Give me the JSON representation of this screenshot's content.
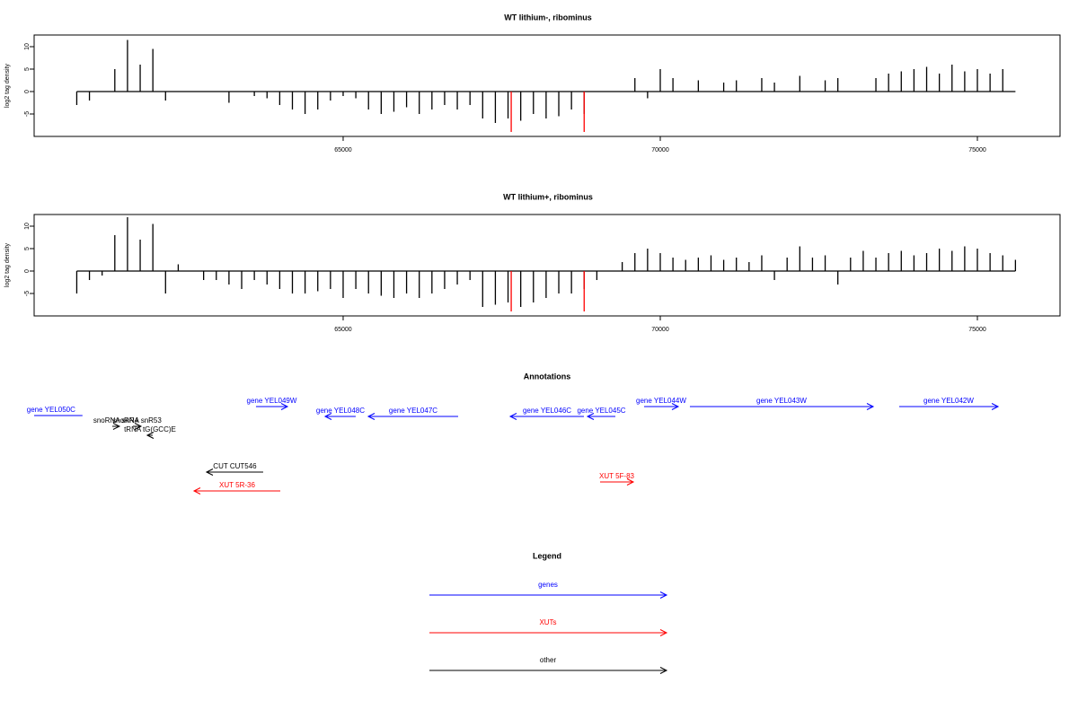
{
  "chart_data": [
    {
      "type": "bar",
      "title": "WT lithium-, ribominus",
      "y_label": "log2 tag density",
      "xlim": [
        60128,
        76303
      ],
      "xticks": [
        65000,
        70000,
        75000
      ],
      "ylim": [
        -10,
        12.6
      ],
      "yticks": [
        -5,
        0,
        5,
        10
      ],
      "series": [
        {
          "color": "#000000",
          "x": [
            60800,
            61000,
            61200,
            61400,
            61600,
            61800,
            62000,
            62200,
            62400,
            62600,
            62800,
            63000,
            63200,
            63400,
            63600,
            63800,
            64000,
            64200,
            64400,
            64600,
            64800,
            65000,
            65200,
            65400,
            65600,
            65800,
            66000,
            66200,
            66400,
            66600,
            66800,
            67000,
            67200,
            67400,
            67600,
            67800,
            68000,
            68200,
            68400,
            68600,
            68800,
            69000,
            69200,
            69400,
            69600,
            69800,
            70000,
            70200,
            70400,
            70600,
            70800,
            71000,
            71200,
            71400,
            71600,
            71800,
            72000,
            72200,
            72400,
            72600,
            72800,
            73000,
            73200,
            73400,
            73600,
            73800,
            74000,
            74200,
            74400,
            74600,
            74800,
            75000,
            75200,
            75400,
            75600
          ],
          "values": [
            -3,
            -2,
            0,
            5,
            11.5,
            6,
            9.5,
            -2,
            0,
            0,
            0,
            0,
            -2.5,
            0,
            -1,
            -1.5,
            -3,
            -4,
            -5,
            -4,
            -2,
            -1,
            -1.5,
            -4,
            -5,
            -4.5,
            -3.5,
            -5,
            -4,
            -3,
            -4,
            -3,
            -6,
            -7,
            -6,
            -6.5,
            -5,
            -6,
            -5.5,
            -4,
            -5,
            0,
            0,
            0,
            3,
            -1.5,
            5,
            3,
            0,
            2.5,
            0,
            2,
            2.5,
            0,
            3,
            2,
            0,
            3.5,
            0,
            2.5,
            3,
            0,
            0,
            3,
            4,
            4.5,
            5,
            5.5,
            4,
            6,
            4.5,
            5,
            4,
            5,
            0
          ]
        },
        {
          "color": "#ff0000",
          "x": [
            67650,
            68800
          ],
          "values": [
            -9,
            -9
          ]
        }
      ]
    },
    {
      "type": "bar",
      "title": "WT lithium+, ribominus",
      "y_label": "log2 tag density",
      "xlim": [
        60128,
        76303
      ],
      "xticks": [
        65000,
        70000,
        75000
      ],
      "ylim": [
        -10,
        12.6
      ],
      "yticks": [
        -5,
        0,
        5,
        10
      ],
      "series": [
        {
          "color": "#000000",
          "x": [
            60800,
            61000,
            61200,
            61400,
            61600,
            61800,
            62000,
            62200,
            62400,
            62600,
            62800,
            63000,
            63200,
            63400,
            63600,
            63800,
            64000,
            64200,
            64400,
            64600,
            64800,
            65000,
            65200,
            65400,
            65600,
            65800,
            66000,
            66200,
            66400,
            66600,
            66800,
            67000,
            67200,
            67400,
            67600,
            67800,
            68000,
            68200,
            68400,
            68600,
            68800,
            69000,
            69200,
            69400,
            69600,
            69800,
            70000,
            70200,
            70400,
            70600,
            70800,
            71000,
            71200,
            71400,
            71600,
            71800,
            72000,
            72200,
            72400,
            72600,
            72800,
            73000,
            73200,
            73400,
            73600,
            73800,
            74000,
            74200,
            74400,
            74600,
            74800,
            75000,
            75200,
            75400,
            75600
          ],
          "values": [
            -5,
            -2,
            -1,
            8,
            12,
            7,
            10.5,
            -5,
            1.5,
            0,
            -2,
            -2,
            -3,
            -4,
            -2,
            -3,
            -4,
            -5,
            -5,
            -4.5,
            -4,
            -6,
            -4,
            -5,
            -5.5,
            -6,
            -5,
            -6,
            -5,
            -4,
            -3,
            -2,
            -8,
            -7.5,
            -7,
            -8,
            -7,
            -6,
            -5,
            -5,
            -4,
            -2,
            0,
            2,
            4,
            5,
            4,
            3,
            2.5,
            3,
            3.5,
            2.5,
            3,
            2,
            3.5,
            -2,
            3,
            5.5,
            3,
            3.5,
            -3,
            3,
            4.5,
            3,
            4,
            4.5,
            3.5,
            4,
            5,
            4.5,
            5.5,
            5,
            4,
            3.5,
            2.5
          ]
        },
        {
          "color": "#ff0000",
          "x": [
            67650,
            68800
          ],
          "values": [
            -9,
            -9
          ]
        }
      ]
    }
  ],
  "annotations": {
    "title": "Annotations",
    "features": [
      {
        "label": "gene YEL050C",
        "start": 60890,
        "end": 59900,
        "color": "#0000ff"
      },
      {
        "label": "snoRNA snR4",
        "start": 61360,
        "end": 61473,
        "color": "#000000"
      },
      {
        "label": "snoRNA snR53",
        "start": 61686,
        "end": 61813,
        "color": "#000000"
      },
      {
        "label": "tRNA tG(GCC)E",
        "start": 61997,
        "end": 61912,
        "color": "#000000"
      },
      {
        "label": "gene YEL049W",
        "start": 63626,
        "end": 64122,
        "color": "#0000ff"
      },
      {
        "label": "gene YEL048C",
        "start": 65198,
        "end": 64717,
        "color": "#0000ff"
      },
      {
        "label": "gene YEL047C",
        "start": 66813,
        "end": 65397,
        "color": "#0000ff"
      },
      {
        "label": "gene YEL046C",
        "start": 68796,
        "end": 67635,
        "color": "#0000ff"
      },
      {
        "label": "gene YEL045C",
        "start": 69292,
        "end": 68853,
        "color": "#0000ff"
      },
      {
        "label": "gene YEL044W",
        "start": 69745,
        "end": 70283,
        "color": "#0000ff"
      },
      {
        "label": "gene YEL043W",
        "start": 70467,
        "end": 73357,
        "color": "#0000ff"
      },
      {
        "label": "gene YEL042W",
        "start": 73767,
        "end": 75326,
        "color": "#0000ff"
      },
      {
        "label": "CUT CUT546",
        "start": 63739,
        "end": 62847,
        "color": "#000000"
      },
      {
        "label": "XUT 5R-36",
        "start": 64009,
        "end": 62649,
        "color": "#ff0000"
      },
      {
        "label": "XUT 5F-83",
        "start": 69051,
        "end": 69575,
        "color": "#ff0000"
      }
    ]
  },
  "legend": {
    "title": "Legend",
    "items": [
      {
        "label": "genes",
        "color": "#0000ff"
      },
      {
        "label": "XUTs",
        "color": "#ff0000"
      },
      {
        "label": "other",
        "color": "#000000"
      }
    ]
  }
}
